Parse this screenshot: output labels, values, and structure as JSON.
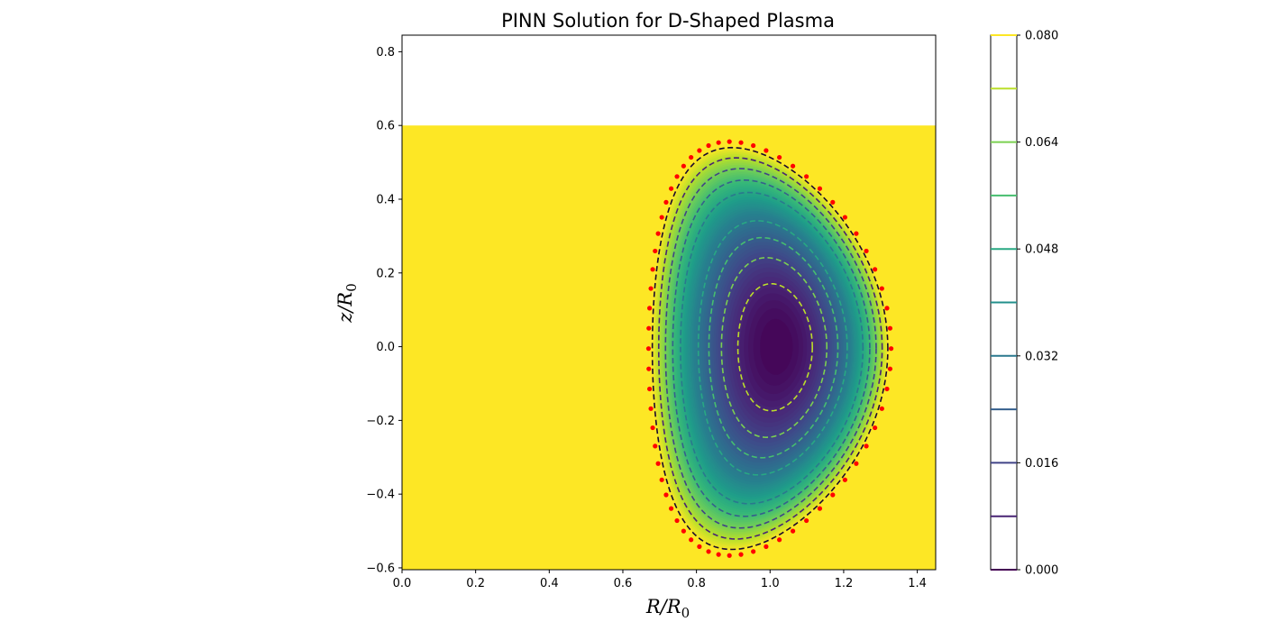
{
  "chart_data": {
    "type": "heatmap",
    "title": "PINN Solution for D-Shaped Plasma",
    "xlabel": {
      "main": "R/R",
      "sub": "0"
    },
    "ylabel": {
      "main": "z/R",
      "sub": "0"
    },
    "xlim": [
      0.0,
      1.45
    ],
    "ylim": [
      -0.605,
      0.845
    ],
    "x_ticks": [
      0.0,
      0.2,
      0.4,
      0.6,
      0.8,
      1.0,
      1.2,
      1.4
    ],
    "x_tick_labels": [
      "0.0",
      "0.2",
      "0.4",
      "0.6",
      "0.8",
      "1.0",
      "1.2",
      "1.4"
    ],
    "y_ticks": [
      -0.6,
      -0.4,
      -0.2,
      0.0,
      0.2,
      0.4,
      0.6,
      0.8
    ],
    "y_tick_labels": [
      "−0.6",
      "−0.4",
      "−0.2",
      "0.0",
      "0.2",
      "0.4",
      "0.6",
      "0.8"
    ],
    "field_domain": {
      "x": [
        0.0,
        1.45
      ],
      "y": [
        -0.605,
        0.6
      ]
    },
    "colormap": "viridis",
    "fill_color": "#fde725",
    "plasma": {
      "center_R": 1.0,
      "center_z": -0.005,
      "half_width": 0.32,
      "half_height": 0.545,
      "triangularity": 0.33,
      "axis_R": 1.02,
      "axis_z": 0.0,
      "psi_axis": 0.0,
      "psi_boundary": 0.08
    },
    "contour_levels": [
      0.008,
      0.016,
      0.024,
      0.032,
      0.04,
      0.048,
      0.056,
      0.064,
      0.072,
      0.08
    ],
    "contour_style": "dashed",
    "boundary_points_color": "#ff0000",
    "boundary_points_count": 64,
    "colorbar": {
      "min": 0.0,
      "max": 0.08,
      "tick_values": [
        0.0,
        0.016,
        0.032,
        0.048,
        0.064,
        0.08
      ],
      "tick_labels": [
        "0.000",
        "0.016",
        "0.032",
        "0.048",
        "0.064",
        "0.080"
      ],
      "levels": [
        0.0,
        0.008,
        0.016,
        0.024,
        0.032,
        0.04,
        0.048,
        0.056,
        0.064,
        0.072,
        0.08
      ]
    }
  }
}
